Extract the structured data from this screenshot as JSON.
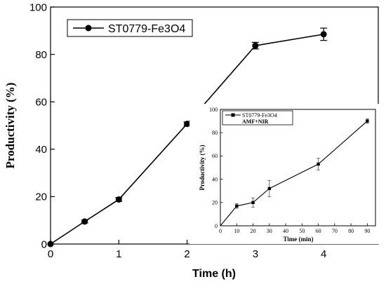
{
  "chart_data": [
    {
      "type": "line",
      "xlabel": "Time (h)",
      "ylabel": "Productivity (%)",
      "xlim": [
        0,
        4.8
      ],
      "ylim": [
        0,
        100
      ],
      "x_ticks": [
        "0",
        "1",
        "2",
        "3",
        "4"
      ],
      "y_ticks": [
        "0",
        "20",
        "40",
        "60",
        "80",
        "100"
      ],
      "grid": false,
      "legend_position": "top-left",
      "series": [
        {
          "name": "ST0779-Fe3O4",
          "x": [
            0,
            0.5,
            1,
            2,
            3,
            4
          ],
          "values": [
            0,
            9.5,
            18.8,
            50.7,
            83.7,
            88.5
          ],
          "error": [
            0,
            0.6,
            0.8,
            0.8,
            1.4,
            2.6
          ]
        }
      ]
    },
    {
      "type": "line",
      "xlabel": "Time (min)",
      "ylabel": "Productivity (%)",
      "xlim": [
        0,
        95
      ],
      "ylim": [
        0,
        100
      ],
      "x_ticks": [
        "0",
        "10",
        "20",
        "30",
        "40",
        "50",
        "60",
        "70",
        "80",
        "90"
      ],
      "y_ticks": [
        "0",
        "20",
        "40",
        "60",
        "80",
        "100"
      ],
      "grid": false,
      "legend_position": "top-left",
      "legend_note": "AMF+NIR",
      "series": [
        {
          "name": "ST0779-Fe3O4",
          "x": [
            10,
            20,
            30,
            60,
            90
          ],
          "values": [
            17,
            20,
            32,
            53,
            90
          ],
          "error": [
            2,
            4,
            7,
            5,
            2
          ]
        }
      ]
    }
  ]
}
